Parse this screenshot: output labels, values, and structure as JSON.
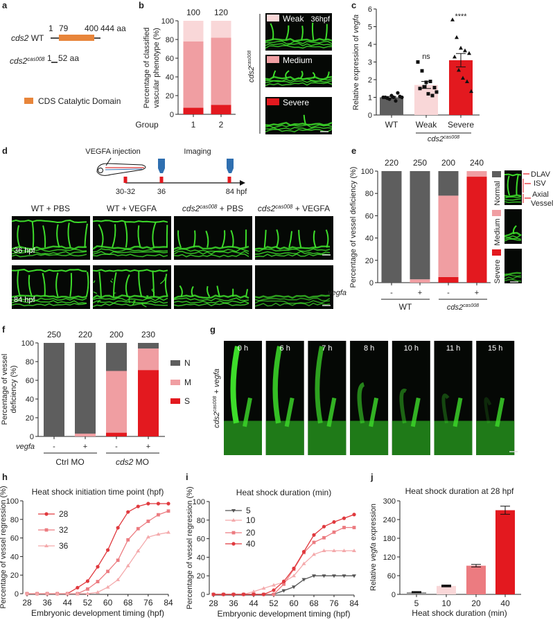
{
  "panel_labels": [
    "a",
    "b",
    "c",
    "d",
    "e",
    "f",
    "g",
    "h",
    "i",
    "j"
  ],
  "colors": {
    "normal": "#5e5e5e",
    "medium": "#f09ea2",
    "weak": "#f9d7d8",
    "severe": "#e3191f",
    "domain": "#e8853a",
    "vial": "#2f6fb0",
    "vessel": "#3ddc2a"
  },
  "panel_a": {
    "wt_gene": "cds2",
    "wt_suffix": " WT",
    "mut_gene": "cds2",
    "mut_sup": "cas008",
    "wt_positions": [
      "1",
      "79",
      "400",
      "444 aa"
    ],
    "mut_positions": [
      "1",
      "52 aa"
    ],
    "legend": "CDS Catalytic Domain"
  },
  "panel_b_images": {
    "genotype_gene": "cds2",
    "genotype_sup": "cas008",
    "items": [
      {
        "label": "Weak",
        "stage": "36hpf"
      },
      {
        "label": "Medium"
      },
      {
        "label": "Severe"
      }
    ]
  },
  "panel_d": {
    "injection_label": "VEGFA injection",
    "imaging_label": "Imaging",
    "timeline": [
      "30-32",
      "36",
      "84 hpf"
    ],
    "columns": [
      {
        "text": "WT + PBS"
      },
      {
        "text": "WT + VEGFA"
      },
      {
        "gene": "cds2",
        "sup": "cas008",
        "text": " + PBS"
      },
      {
        "gene": "cds2",
        "sup": "cas008",
        "text": " + VEGFA"
      }
    ],
    "rows": [
      "36 hpf",
      "84 hpf"
    ]
  },
  "panel_e_images": {
    "annotations": [
      "DLAV",
      "ISV",
      "Axial",
      "Vessel"
    ]
  },
  "panel_g": {
    "row_gene": "cds2",
    "row_sup": "cas008",
    "row_text": " + ",
    "row_gene2": "vegfa",
    "timepoints": [
      "0 h",
      "6 h",
      "7 h",
      "8 h",
      "10 h",
      "11 h",
      "15 h"
    ]
  },
  "chart_data": [
    {
      "id": "b",
      "type": "bar",
      "stacked": true,
      "categories": [
        "1",
        "2"
      ],
      "xlabel": "Group",
      "ylabel_lines": [
        "Percentage of classified",
        "vascular phenotype (%)"
      ],
      "ylim": [
        0,
        100
      ],
      "yticks": [
        0,
        20,
        40,
        60,
        80,
        100
      ],
      "n_labels": [
        "100",
        "120"
      ],
      "series": [
        {
          "name": "Severe",
          "values": [
            7,
            10
          ]
        },
        {
          "name": "Medium",
          "values": [
            71,
            72
          ]
        },
        {
          "name": "Weak",
          "values": [
            22,
            18
          ]
        }
      ]
    },
    {
      "id": "c",
      "type": "bar",
      "categories": [
        "WT",
        "Weak",
        "Severe"
      ],
      "means": [
        1.0,
        1.7,
        3.1
      ],
      "sem": [
        0.05,
        0.2,
        0.38
      ],
      "significance": [
        "",
        "ns",
        "****"
      ],
      "points": [
        [
          1.0,
          0.95,
          1.1,
          0.8,
          1.05,
          1.0,
          0.9,
          1.0,
          1.25,
          1.0
        ],
        [
          3.0,
          2.5,
          1.85,
          1.9,
          1.55,
          1.5,
          1.6,
          1.2,
          1.1,
          1.3
        ],
        [
          5.4,
          4.4,
          3.8,
          3.65,
          3.5,
          3.3,
          2.55,
          2.1,
          1.9,
          1.35
        ]
      ],
      "ylabel_pre": "Relative expression of ",
      "ylabel_gene": "vegfa",
      "ylim": [
        0,
        6
      ],
      "yticks": [
        0,
        1,
        2,
        3,
        4,
        5,
        6
      ],
      "group_gene": "cds2",
      "group_sup": "cas008"
    },
    {
      "id": "e",
      "type": "bar",
      "stacked": true,
      "row_label": "vegfa",
      "categories": [
        "-",
        "+",
        "-",
        "+"
      ],
      "groups": [
        {
          "label": "WT"
        },
        {
          "gene": "cds2",
          "sup": "cas008"
        }
      ],
      "n_labels": [
        "220",
        "250",
        "200",
        "240"
      ],
      "ylabel": "Percentage of vessel deficiency (%)",
      "ylim": [
        0,
        100
      ],
      "yticks": [
        0,
        20,
        40,
        60,
        80,
        100
      ],
      "series": [
        {
          "name": "Severe",
          "values": [
            0,
            0,
            5,
            95
          ]
        },
        {
          "name": "Medium",
          "values": [
            0,
            3,
            73,
            5
          ]
        },
        {
          "name": "Normal",
          "values": [
            100,
            97,
            22,
            0
          ]
        }
      ],
      "legend": [
        "Normal",
        "Medium",
        "Severe"
      ]
    },
    {
      "id": "f",
      "type": "bar",
      "stacked": true,
      "row_label": "vegfa",
      "categories": [
        "-",
        "+",
        "-",
        "+"
      ],
      "groups": [
        {
          "label": "Ctrl MO"
        },
        {
          "gene": "cds2",
          "label": " MO"
        }
      ],
      "n_labels": [
        "250",
        "220",
        "200",
        "230"
      ],
      "ylabel_lines": [
        "Percentage of vessel",
        "deficiency (%)"
      ],
      "ylim": [
        0,
        100
      ],
      "yticks": [
        0,
        20,
        40,
        60,
        80,
        100
      ],
      "series": [
        {
          "name": "S",
          "values": [
            0,
            0,
            4,
            71
          ]
        },
        {
          "name": "M",
          "values": [
            0,
            3,
            66,
            23
          ]
        },
        {
          "name": "N",
          "values": [
            100,
            97,
            30,
            6
          ]
        }
      ],
      "legend": [
        "N",
        "M",
        "S"
      ]
    },
    {
      "id": "h",
      "type": "line",
      "title": "Heat shock initiation time point (hpf)",
      "xlabel": "Embryonic development timing (hpf)",
      "ylabel": "Percentage of vessel regression (%)",
      "x": [
        28,
        32,
        36,
        40,
        44,
        48,
        52,
        56,
        60,
        64,
        68,
        72,
        76,
        80,
        84
      ],
      "xticks": [
        28,
        36,
        44,
        52,
        60,
        68,
        76,
        84
      ],
      "yticks": [
        0,
        20,
        40,
        60,
        80,
        100
      ],
      "xlim": [
        28,
        84
      ],
      "ylim": [
        0,
        100
      ],
      "series": [
        {
          "name": "28",
          "marker": "circle",
          "color": "#e0393e",
          "values": [
            0,
            0,
            0,
            0,
            0,
            6.5,
            13.5,
            29,
            47,
            71,
            88,
            94,
            97,
            97,
            97
          ]
        },
        {
          "name": "32",
          "marker": "square",
          "color": "#ec7b80",
          "values": [
            0,
            0,
            0,
            0,
            0,
            0,
            5,
            13,
            24,
            36,
            58,
            70,
            78,
            85,
            89
          ]
        },
        {
          "name": "36",
          "marker": "triangle",
          "color": "#f4a9ab",
          "values": [
            0,
            0,
            0,
            0,
            0,
            0,
            0,
            1.5,
            7,
            15,
            30,
            46,
            61,
            64,
            66
          ]
        }
      ]
    },
    {
      "id": "i",
      "type": "line",
      "title": "Heat shock duration (min)",
      "xlabel": "Embryonic development timing (hpf)",
      "ylabel": "Percentage of vessel regression (%)",
      "x": [
        28,
        32,
        36,
        40,
        44,
        48,
        52,
        56,
        60,
        64,
        68,
        72,
        76,
        80,
        84
      ],
      "xticks": [
        28,
        36,
        44,
        52,
        60,
        68,
        76,
        84
      ],
      "yticks": [
        0,
        20,
        40,
        60,
        80,
        100
      ],
      "xlim": [
        28,
        84
      ],
      "ylim": [
        0,
        100
      ],
      "series": [
        {
          "name": "5",
          "marker": "triangle-down",
          "color": "#555555",
          "values": [
            0,
            0,
            0,
            0,
            0,
            0,
            0,
            4,
            8,
            16,
            20,
            20,
            20,
            20,
            20
          ]
        },
        {
          "name": "10",
          "marker": "triangle",
          "color": "#f4a9ab",
          "values": [
            0,
            0,
            0,
            0,
            3,
            6.5,
            10,
            13,
            20,
            33,
            43,
            47,
            47,
            47,
            47
          ]
        },
        {
          "name": "20",
          "marker": "square",
          "color": "#ec7b80",
          "values": [
            0,
            0,
            0,
            0,
            0,
            0,
            0,
            11,
            27,
            45,
            56,
            61,
            67,
            72,
            72
          ]
        },
        {
          "name": "40",
          "marker": "circle",
          "color": "#e0393e",
          "values": [
            0,
            0,
            0,
            0,
            0,
            0,
            4.5,
            14,
            28,
            46,
            64,
            73,
            78,
            82,
            86
          ]
        }
      ]
    },
    {
      "id": "j",
      "type": "bar",
      "title": "Heat shock duration at 28 hpf",
      "xlabel": "Heat shock duration (min)",
      "ylabel_pre": "Relative ",
      "ylabel_gene": "vegfa",
      "ylabel_post": " expression",
      "categories": [
        "5",
        "10",
        "20",
        "40"
      ],
      "values": [
        7,
        27,
        92,
        270
      ],
      "errors": [
        1,
        2,
        4,
        13
      ],
      "colors": [
        "#9a9a9a",
        "#f9d7d8",
        "#ec7b80",
        "#e3191f"
      ],
      "ylim": [
        0,
        300
      ],
      "yticks": [
        0,
        60,
        120,
        180,
        240,
        300
      ]
    }
  ]
}
